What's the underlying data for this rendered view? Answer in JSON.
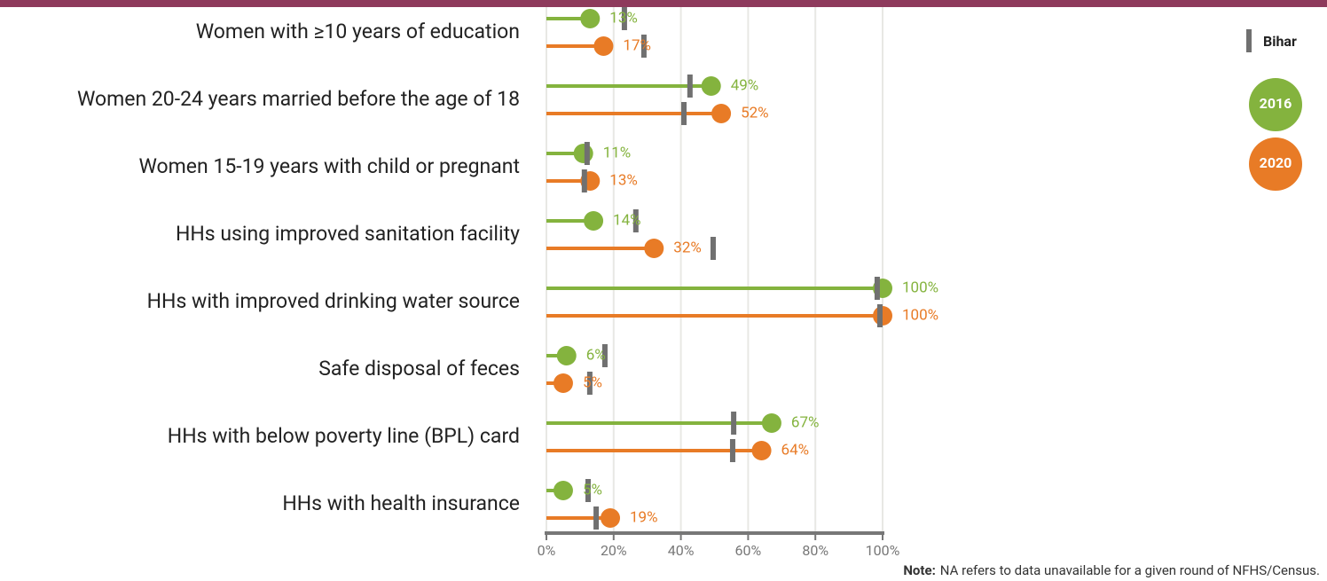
{
  "chart_data": {
    "type": "dot",
    "categories": [
      "Women with ≥10 years of education",
      "Women 20-24 years married before the age of 18",
      "Women 15-19 years with child or pregnant",
      "HHs using improved sanitation facility",
      "HHs with improved drinking water source",
      "Safe disposal of feces",
      "HHs with below poverty line (BPL) card",
      "HHs with health insurance"
    ],
    "series": [
      {
        "name": "2016",
        "color": "#84b33e",
        "values": [
          13,
          49,
          11,
          14,
          100,
          6,
          67,
          5
        ],
        "value_labels": [
          "13%",
          "49%",
          "11%",
          "14%",
          "100%",
          "6%",
          "67%",
          "5%"
        ],
        "reference_values": [
          23.2,
          42.7,
          12.1,
          26.6,
          98.4,
          17.4,
          55.7,
          12.4
        ]
      },
      {
        "name": "2020",
        "color": "#e87b26",
        "values": [
          17,
          52,
          13,
          32,
          100,
          5,
          64,
          19
        ],
        "value_labels": [
          "17%",
          "52%",
          "13%",
          "32%",
          "100%",
          "5%",
          "64%",
          "19%"
        ],
        "reference_values": [
          29,
          40.9,
          11.3,
          49.6,
          99.2,
          12.9,
          55.4,
          14.8
        ]
      }
    ],
    "reference": {
      "name": "Bihar",
      "color": "#707070"
    },
    "xlim": [
      0,
      100
    ],
    "xticks": [
      {
        "value": 0,
        "label": "0%"
      },
      {
        "value": 20,
        "label": "20%"
      },
      {
        "value": 40,
        "label": "40%"
      },
      {
        "value": 60,
        "label": "60%"
      },
      {
        "value": 80,
        "label": "80%"
      },
      {
        "value": 100,
        "label": "100%"
      }
    ],
    "grid": true,
    "note_label": "Note:",
    "note": "NA refers to data unavailable for a given round of NFHS/Census."
  }
}
